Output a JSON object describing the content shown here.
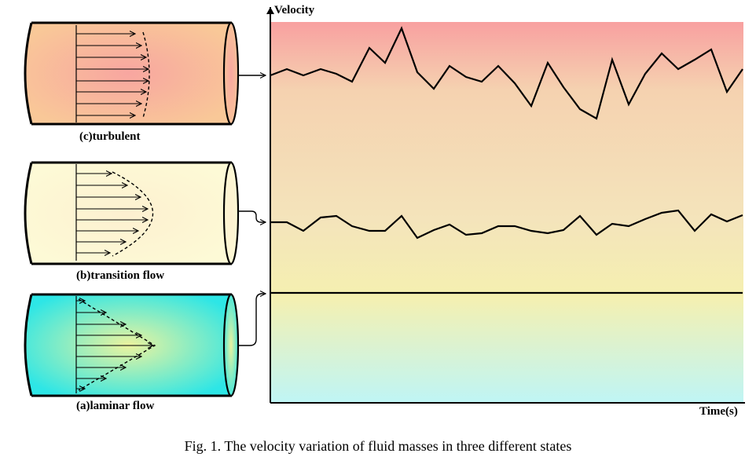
{
  "figure": {
    "caption": "Fig. 1. The velocity variation of fluid masses in three different states",
    "chart": {
      "ylabel": "Velocity",
      "xlabel": "Time(s)"
    },
    "pipes": [
      {
        "id": "turbulent",
        "label": "(c)turbulent",
        "profile": "flat"
      },
      {
        "id": "transition",
        "label": "(b)transition flow",
        "profile": "rounded"
      },
      {
        "id": "laminar",
        "label": "(a)laminar flow",
        "profile": "parabolic"
      }
    ],
    "colors": {
      "turbulent_band_top": "#f8a0a0",
      "turbulent_band_bottom": "#f5d2b0",
      "transition_band": "#f4e4bb",
      "laminar_band_top": "#f5f0b0",
      "laminar_band_bottom": "#bff5f5",
      "pipe_turbulent_center": "#f8a6a0",
      "pipe_turbulent_edge": "#f9c898",
      "pipe_transition_fill": "#fdf7d3",
      "pipe_laminar_center": "#ecf39e",
      "pipe_laminar_edge": "#2de6e6"
    }
  }
}
